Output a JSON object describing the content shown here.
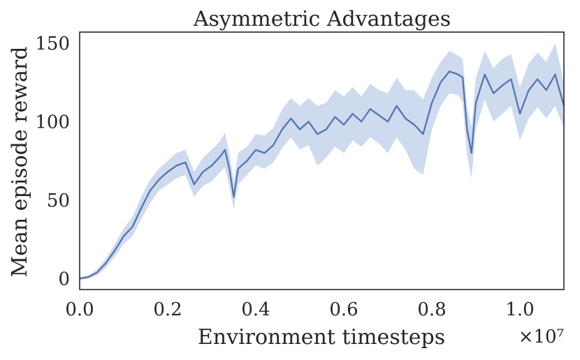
{
  "chart_data": {
    "type": "line",
    "title": "Asymmetric Advantages",
    "xlabel": "Environment timesteps",
    "ylabel": "Mean episode reward",
    "x_offset_label": "×10⁷",
    "xlim": [
      0.0,
      1.1
    ],
    "ylim": [
      -7,
      157
    ],
    "xticks": [
      0.0,
      0.2,
      0.4,
      0.6,
      0.8,
      1.0
    ],
    "xtick_labels": [
      "0.0",
      "0.2",
      "0.4",
      "0.6",
      "0.8",
      "1.0"
    ],
    "yticks": [
      0,
      50,
      100,
      150
    ],
    "ytick_labels": [
      "0",
      "50",
      "100",
      "150"
    ],
    "grid": false,
    "legend": "none",
    "colors": {
      "line": "#4c72b0",
      "band": "#c6d4ea",
      "frame": "#262626"
    },
    "series": [
      {
        "x": [
          0.0,
          0.02,
          0.04,
          0.06,
          0.08,
          0.1,
          0.12,
          0.14,
          0.16,
          0.18,
          0.2,
          0.22,
          0.24,
          0.26,
          0.28,
          0.3,
          0.32,
          0.33,
          0.34,
          0.35,
          0.36,
          0.38,
          0.4,
          0.42,
          0.44,
          0.46,
          0.48,
          0.5,
          0.52,
          0.54,
          0.56,
          0.58,
          0.6,
          0.62,
          0.64,
          0.66,
          0.68,
          0.7,
          0.72,
          0.74,
          0.76,
          0.78,
          0.8,
          0.82,
          0.84,
          0.86,
          0.87,
          0.88,
          0.89,
          0.9,
          0.92,
          0.94,
          0.96,
          0.98,
          1.0,
          1.02,
          1.04,
          1.06,
          1.08,
          1.1
        ],
        "y": [
          0,
          1,
          4,
          10,
          18,
          27,
          33,
          45,
          56,
          63,
          68,
          72,
          74,
          60,
          68,
          72,
          78,
          82,
          70,
          52,
          70,
          75,
          82,
          80,
          85,
          95,
          102,
          95,
          100,
          92,
          95,
          103,
          98,
          105,
          100,
          108,
          104,
          100,
          110,
          102,
          98,
          92,
          112,
          125,
          132,
          130,
          128,
          95,
          80,
          112,
          130,
          118,
          123,
          127,
          105,
          120,
          127,
          120,
          130,
          110
        ],
        "lower": [
          -1,
          0,
          2,
          7,
          14,
          22,
          27,
          38,
          48,
          56,
          60,
          64,
          66,
          52,
          59,
          62,
          68,
          71,
          59,
          44,
          60,
          66,
          72,
          70,
          74,
          83,
          90,
          82,
          85,
          72,
          77,
          84,
          80,
          88,
          84,
          90,
          86,
          80,
          90,
          82,
          70,
          66,
          95,
          110,
          118,
          117,
          112,
          78,
          64,
          95,
          114,
          100,
          105,
          110,
          88,
          102,
          109,
          102,
          110,
          96
        ],
        "upper": [
          1,
          2,
          6,
          13,
          22,
          32,
          39,
          52,
          63,
          70,
          75,
          80,
          82,
          68,
          77,
          82,
          88,
          93,
          80,
          62,
          80,
          84,
          92,
          91,
          96,
          108,
          115,
          110,
          115,
          110,
          112,
          120,
          116,
          122,
          116,
          124,
          120,
          118,
          128,
          120,
          120,
          114,
          128,
          138,
          145,
          142,
          140,
          110,
          96,
          128,
          145,
          134,
          140,
          143,
          122,
          137,
          144,
          138,
          150,
          125
        ]
      }
    ]
  }
}
